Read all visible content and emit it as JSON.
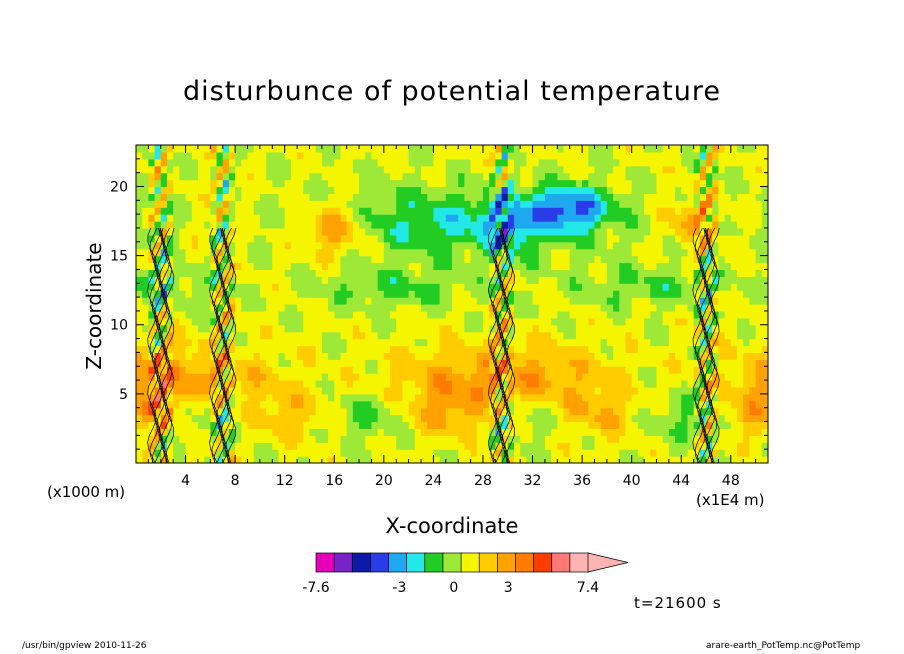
{
  "title": "disturbunce of potential temperature",
  "footer": {
    "left": "/usr/bin/gpview   2010-11-26",
    "right": "arare-earth_PotTemp.nc@PotTemp"
  },
  "time_label": "t=21600 s",
  "chart_data": {
    "type": "heatmap",
    "title": "disturbunce of potential temperature",
    "xlabel": "X-coordinate",
    "ylabel": "Z-coordinate",
    "x_unit": "(x1E4 m)",
    "y_unit": "(x1000 m)",
    "xlim": [
      0,
      51
    ],
    "ylim": [
      0,
      23
    ],
    "x_ticks": [
      4,
      8,
      12,
      16,
      20,
      24,
      28,
      32,
      36,
      40,
      44,
      48
    ],
    "y_ticks": [
      5,
      10,
      15,
      20
    ],
    "grid": false,
    "colorbar": {
      "levels": [
        -7.6,
        -6.6,
        -5.6,
        -4.6,
        -3.6,
        -2.6,
        -1.6,
        -0.6,
        0.4,
        1.4,
        2.4,
        3.4,
        4.4,
        5.4,
        6.4,
        7.4
      ],
      "colors": [
        "#e600b8",
        "#7a22c8",
        "#0c1aa8",
        "#2a3ce8",
        "#1fa8f0",
        "#22e8e8",
        "#22cc22",
        "#9ee838",
        "#f5f500",
        "#ffcc00",
        "#ffa200",
        "#ff7c00",
        "#ff3c00",
        "#ff7878",
        "#ffb4b4"
      ],
      "labels": [
        "-7.6",
        "-3",
        "0",
        "3",
        "7.4"
      ],
      "label_values": [
        -7.6,
        -3,
        0,
        3,
        7.4
      ],
      "extend": "max"
    }
  }
}
